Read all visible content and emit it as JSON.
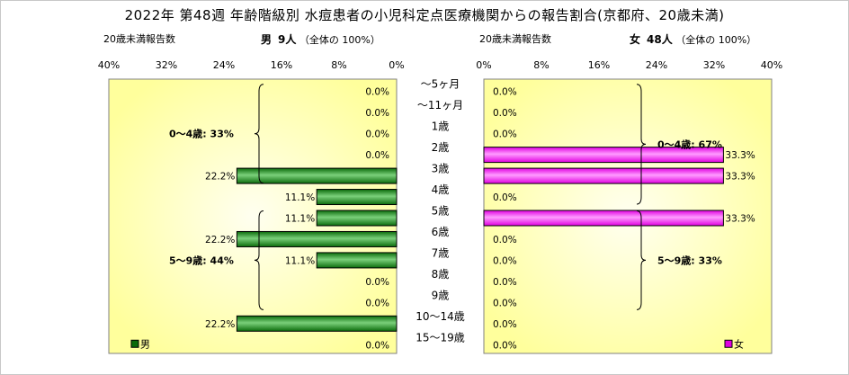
{
  "title": "2022年 第48週 年齢階級別 水痘患者の小児科定点医療機関からの報告割合(京都府、20歳未満)",
  "left_header": {
    "label": "20歳未満報告数",
    "sex": "男",
    "count": "9人",
    "total": "（全体の 100%）"
  },
  "right_header": {
    "label": "20歳未満報告数",
    "sex": "女",
    "count": "48人",
    "total": "（全体の 100%）"
  },
  "chart_data": {
    "type": "bar",
    "categories": [
      "～5ヶ月",
      "～11ヶ月",
      "1歳",
      "2歳",
      "3歳",
      "4歳",
      "5歳",
      "6歳",
      "7歳",
      "8歳",
      "9歳",
      "10～14歳",
      "15～19歳"
    ],
    "xlim": [
      0,
      40
    ],
    "ticks": [
      "0%",
      "8%",
      "16%",
      "24%",
      "32%",
      "40%"
    ],
    "tick_values": [
      0,
      8,
      16,
      24,
      32,
      40
    ],
    "colors": {
      "male": "#0b6b0b",
      "male_light": "#7bd07b",
      "female": "#e000e0",
      "female_light": "#ff9cff"
    },
    "series": [
      {
        "name": "男",
        "values": [
          0,
          0,
          0,
          0,
          22.2,
          11.1,
          11.1,
          22.2,
          11.1,
          0,
          0,
          22.2,
          0
        ],
        "labels": [
          "0.0%",
          "0.0%",
          "0.0%",
          "0.0%",
          "22.2%",
          "11.1%",
          "11.1%",
          "22.2%",
          "11.1%",
          "0.0%",
          "0.0%",
          "22.2%",
          "0.0%"
        ],
        "groups": [
          {
            "text": "0～4歳: 33%",
            "from": 0,
            "to": 4
          },
          {
            "text": "5～9歳: 44%",
            "from": 6,
            "to": 10
          }
        ]
      },
      {
        "name": "女",
        "values": [
          0,
          0,
          0,
          33.3,
          33.3,
          0,
          33.3,
          0,
          0,
          0,
          0,
          0,
          0
        ],
        "labels": [
          "0.0%",
          "0.0%",
          "0.0%",
          "33.3%",
          "33.3%",
          "0.0%",
          "33.3%",
          "0.0%",
          "0.0%",
          "0.0%",
          "0.0%",
          "0.0%",
          "0.0%"
        ],
        "groups": [
          {
            "text": "0～4歳: 67%",
            "from": 0,
            "to": 5
          },
          {
            "text": "5～9歳: 33%",
            "from": 6,
            "to": 10
          }
        ]
      }
    ]
  }
}
